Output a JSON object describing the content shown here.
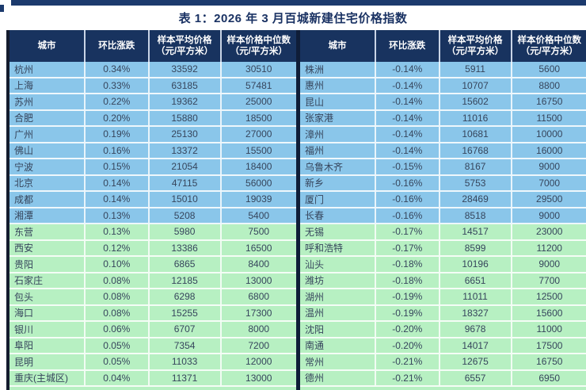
{
  "title": "表 1：2026 年 3 月百城新建住宅价格指数",
  "columns": [
    "城市",
    "环比涨跌",
    "样本平均价格\n（元/平方米）",
    "样本价格中位数\n（元/平方米）"
  ],
  "colors": {
    "accent_bar": "#1c3a6d",
    "header_bg": "#18335f",
    "header_text": "#ffffff",
    "rising_row_bg": "#8ac6ea",
    "falling_row_bg": "#b7f0c2",
    "title_text": "#1a3263",
    "cell_text": "#36455c",
    "frame_dark": "#141c2e"
  },
  "blue_rows_per_table": 10,
  "chart_data": {
    "type": "table",
    "title": "表 1：2026 年 3 月百城新建住宅价格指数",
    "columns": [
      "城市",
      "环比涨跌",
      "样本平均价格（元/平方米）",
      "样本价格中位数（元/平方米）"
    ],
    "left_rows": [
      [
        "杭州",
        "0.34%",
        "33592",
        "30510"
      ],
      [
        "上海",
        "0.33%",
        "63185",
        "57481"
      ],
      [
        "苏州",
        "0.22%",
        "19362",
        "25000"
      ],
      [
        "合肥",
        "0.20%",
        "15880",
        "18500"
      ],
      [
        "广州",
        "0.19%",
        "25130",
        "27000"
      ],
      [
        "佛山",
        "0.16%",
        "13372",
        "15500"
      ],
      [
        "宁波",
        "0.15%",
        "21054",
        "18400"
      ],
      [
        "北京",
        "0.14%",
        "47115",
        "56000"
      ],
      [
        "成都",
        "0.14%",
        "15010",
        "19039"
      ],
      [
        "湘潭",
        "0.13%",
        "5208",
        "5400"
      ],
      [
        "东营",
        "0.13%",
        "5980",
        "7500"
      ],
      [
        "西安",
        "0.12%",
        "13386",
        "16500"
      ],
      [
        "贵阳",
        "0.10%",
        "6865",
        "8400"
      ],
      [
        "石家庄",
        "0.08%",
        "12185",
        "13000"
      ],
      [
        "包头",
        "0.08%",
        "6298",
        "6800"
      ],
      [
        "海口",
        "0.08%",
        "15255",
        "17300"
      ],
      [
        "银川",
        "0.06%",
        "6707",
        "8000"
      ],
      [
        "阜阳",
        "0.05%",
        "7354",
        "7200"
      ],
      [
        "昆明",
        "0.05%",
        "11033",
        "12000"
      ],
      [
        "重庆(主城区)",
        "0.04%",
        "11371",
        "13000"
      ]
    ],
    "right_rows": [
      [
        "株洲",
        "-0.14%",
        "5911",
        "5600"
      ],
      [
        "惠州",
        "-0.14%",
        "10707",
        "8800"
      ],
      [
        "昆山",
        "-0.14%",
        "15602",
        "16750"
      ],
      [
        "张家港",
        "-0.14%",
        "11016",
        "11500"
      ],
      [
        "漳州",
        "-0.14%",
        "10681",
        "10000"
      ],
      [
        "福州",
        "-0.14%",
        "16768",
        "16000"
      ],
      [
        "乌鲁木齐",
        "-0.15%",
        "8167",
        "9000"
      ],
      [
        "新乡",
        "-0.16%",
        "5753",
        "7000"
      ],
      [
        "厦门",
        "-0.16%",
        "28469",
        "29500"
      ],
      [
        "长春",
        "-0.16%",
        "8518",
        "9000"
      ],
      [
        "无锡",
        "-0.17%",
        "14517",
        "23000"
      ],
      [
        "呼和浩特",
        "-0.17%",
        "8599",
        "11200"
      ],
      [
        "汕头",
        "-0.18%",
        "10196",
        "9000"
      ],
      [
        "潍坊",
        "-0.18%",
        "6651",
        "7700"
      ],
      [
        "湖州",
        "-0.19%",
        "11011",
        "12500"
      ],
      [
        "温州",
        "-0.19%",
        "18327",
        "15600"
      ],
      [
        "沈阳",
        "-0.20%",
        "9678",
        "11000"
      ],
      [
        "南通",
        "-0.20%",
        "14017",
        "17500"
      ],
      [
        "常州",
        "-0.21%",
        "12675",
        "16750"
      ],
      [
        "德州",
        "-0.21%",
        "6557",
        "6950"
      ]
    ]
  }
}
